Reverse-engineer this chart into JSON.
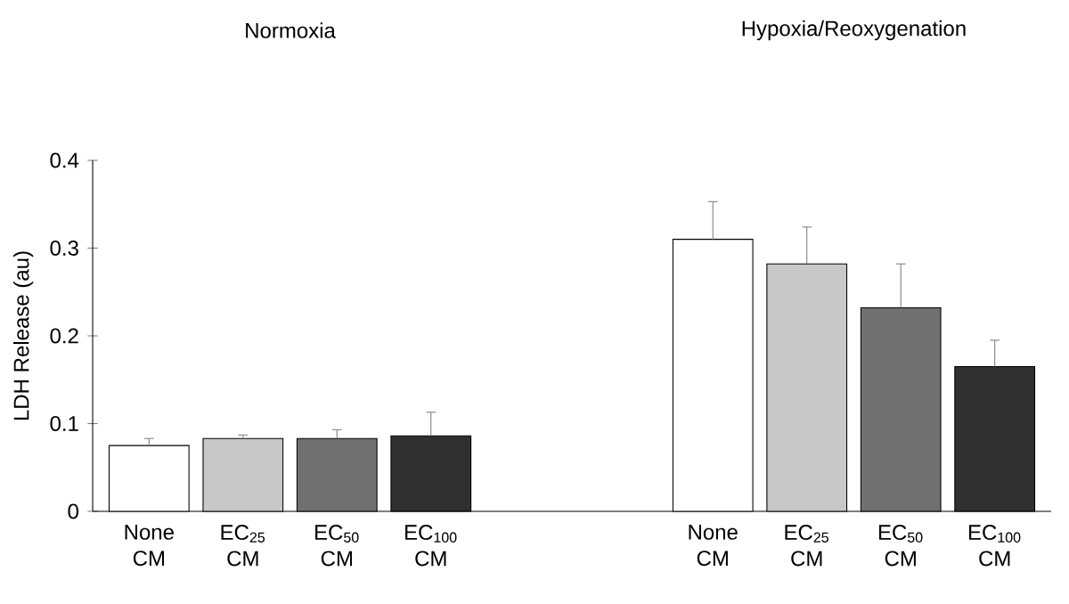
{
  "chart_data": {
    "type": "bar",
    "ylabel": "LDH Release (au)",
    "categories": [
      "None CM",
      "EC$_{25}$ CM",
      "EC$_{50}$ CM",
      "EC$_{100}$ CM",
      null,
      null,
      "None CM",
      "EC$_{25}$ CM",
      "EC$_{50}$ CM",
      "EC$_{100}$ CM"
    ],
    "values": [
      0.075,
      0.083,
      0.083,
      0.086,
      null,
      null,
      0.31,
      0.282,
      0.232,
      0.165
    ],
    "errors": [
      0.008,
      0.004,
      0.01,
      0.027,
      null,
      null,
      0.043,
      0.042,
      0.05,
      0.03
    ],
    "colors": [
      "#ffffff",
      "#c8c8c8",
      "#707070",
      "#303030",
      null,
      null,
      "#ffffff",
      "#c8c8c8",
      "#707070",
      "#303030"
    ],
    "annotations": [
      "Normoxia",
      "Hypoxia/Reoxygenation"
    ],
    "ylim": [
      0,
      0.4
    ],
    "yticks": [
      0,
      0.1,
      0.2,
      0.3,
      0.4
    ],
    "grid": false
  }
}
